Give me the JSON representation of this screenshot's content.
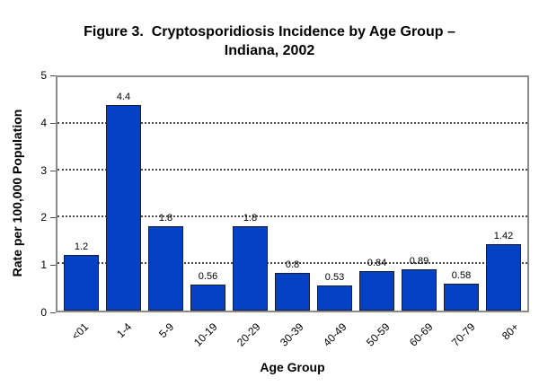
{
  "title": {
    "line1": "Figure 3.  Cryptosporidiosis Incidence by Age Group –",
    "line2": "Indiana, 2002"
  },
  "chart_data": {
    "type": "bar",
    "title": "Figure 3. Cryptosporidiosis Incidence by Age Group – Indiana, 2002",
    "categories": [
      "<01",
      "1-4",
      "5-9",
      "10-19",
      "20-29",
      "30-39",
      "40-49",
      "50-59",
      "60-69",
      "70-79",
      "80+"
    ],
    "values": [
      1.2,
      4.4,
      1.8,
      0.56,
      1.8,
      0.8,
      0.53,
      0.84,
      0.89,
      0.58,
      1.42
    ],
    "value_labels": [
      "1.2",
      "4.4",
      "1.8",
      "0.56",
      "1.8",
      "0.8",
      "0.53",
      "0.84",
      "0.89",
      "0.58",
      "1.42"
    ],
    "xlabel": "Age Group",
    "ylabel": "Rate per 100,000 Population",
    "ylim": [
      0,
      5
    ],
    "yticks": [
      0,
      1,
      2,
      3,
      4,
      5
    ],
    "gridlines_at": [
      1,
      2,
      3,
      4
    ],
    "grid": "horizontal-dotted",
    "legend": "none",
    "bar_color": "#0441c4",
    "bar_border_color": "#1c1c30",
    "plot_border_color": "#8a8a8a",
    "gridline_color": "#4a4a4a",
    "text_color": "#000000",
    "background_color": "#ffffff"
  }
}
